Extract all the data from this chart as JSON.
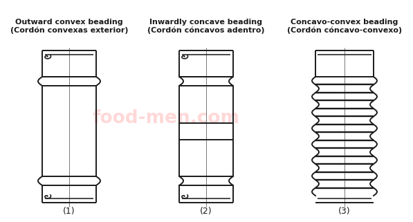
{
  "bg_color": "#ffffff",
  "line_color": "#1a1a1a",
  "watermark": "food-men.com",
  "watermark_color": "#ffb8b8",
  "diagram_labels": [
    "(1)",
    "(2)",
    "(3)"
  ],
  "label1_line1": "Outward convex beading",
  "label1_line2": "(Cordón convexas exterior)",
  "label2_line1": "Inwardly concave beading",
  "label2_line2": "(Cordón cóncavos adentro)",
  "label3_line1": "Concavo-convex beading",
  "label3_line2": "(Cordón cóncavo-convexo)"
}
